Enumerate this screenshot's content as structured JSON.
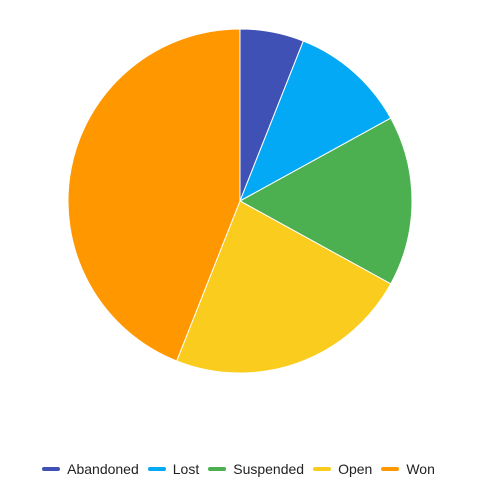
{
  "chart_data": {
    "type": "pie",
    "legend_position": "bottom",
    "slices": [
      {
        "label": "Abandoned",
        "value": 6,
        "color": "#3f51b5"
      },
      {
        "label": "Lost",
        "value": 11,
        "color": "#03a9f4"
      },
      {
        "label": "Suspended",
        "value": 16,
        "color": "#4caf50"
      },
      {
        "label": "Open",
        "value": 23,
        "color": "#f9cc1d"
      },
      {
        "label": "Won",
        "value": 44,
        "color": "#ff9800"
      }
    ]
  }
}
